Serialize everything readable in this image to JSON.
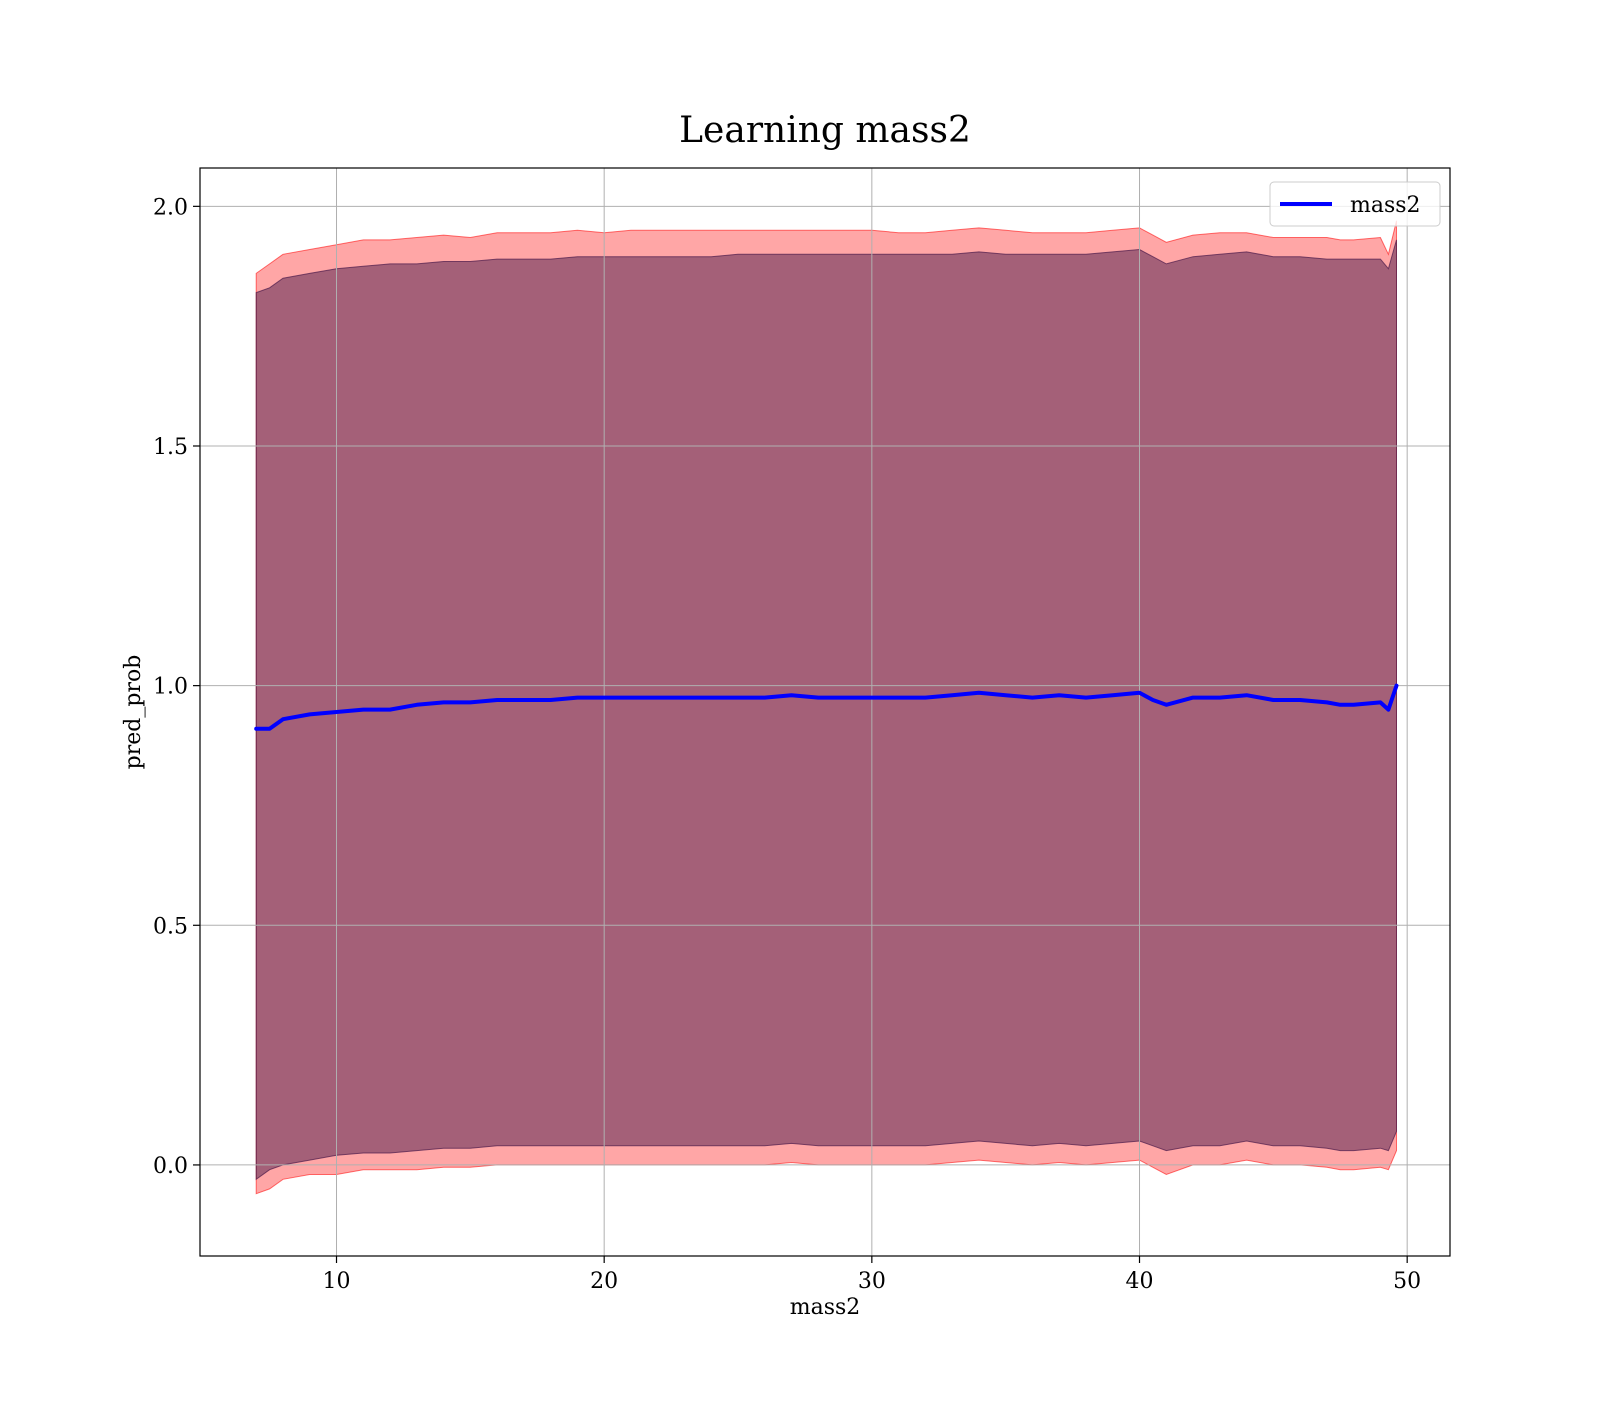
{
  "chart_data": {
    "type": "area",
    "title": "Learning mass2",
    "xlabel": "mass2",
    "ylabel": "pred_prob",
    "xlim": [
      4.9,
      51.6
    ],
    "ylim": [
      -0.19,
      2.08
    ],
    "x_ticks": [
      10,
      20,
      30,
      40,
      50
    ],
    "y_ticks": [
      0.0,
      0.5,
      1.0,
      1.5,
      2.0
    ],
    "x_tick_labels": [
      "10",
      "20",
      "30",
      "40",
      "50"
    ],
    "y_tick_labels": [
      "0.0",
      "0.5",
      "1.0",
      "1.5",
      "2.0"
    ],
    "grid": true,
    "legend": {
      "position": "top-right",
      "entries": [
        {
          "label": "mass2",
          "color": "#0000ff"
        }
      ]
    },
    "series": [
      {
        "name": "mass2",
        "color": "#0000ff",
        "x": [
          7.0,
          7.5,
          8.0,
          9.0,
          10.0,
          11.0,
          12.0,
          13.0,
          14.0,
          15.0,
          16.0,
          17.0,
          18.0,
          19.0,
          20.0,
          21.0,
          22.0,
          23.0,
          24.0,
          25.0,
          26.0,
          27.0,
          28.0,
          29.0,
          30.0,
          31.0,
          32.0,
          33.0,
          34.0,
          35.0,
          36.0,
          37.0,
          38.0,
          39.0,
          40.0,
          40.5,
          41.0,
          42.0,
          43.0,
          44.0,
          45.0,
          46.0,
          47.0,
          47.5,
          48.0,
          49.0,
          49.3,
          49.6
        ],
        "y": [
          0.91,
          0.91,
          0.93,
          0.94,
          0.945,
          0.95,
          0.95,
          0.96,
          0.965,
          0.965,
          0.97,
          0.97,
          0.97,
          0.975,
          0.975,
          0.975,
          0.975,
          0.975,
          0.975,
          0.975,
          0.975,
          0.98,
          0.975,
          0.975,
          0.975,
          0.975,
          0.975,
          0.98,
          0.985,
          0.98,
          0.975,
          0.98,
          0.975,
          0.98,
          0.985,
          0.97,
          0.96,
          0.975,
          0.975,
          0.98,
          0.97,
          0.97,
          0.965,
          0.96,
          0.96,
          0.965,
          0.95,
          1.0
        ]
      }
    ],
    "bands": [
      {
        "color": "#ff0000",
        "opacity": 0.35,
        "x": [
          7.0,
          7.5,
          8.0,
          9.0,
          10.0,
          11.0,
          12.0,
          13.0,
          14.0,
          15.0,
          16.0,
          17.0,
          18.0,
          19.0,
          20.0,
          21.0,
          22.0,
          23.0,
          24.0,
          25.0,
          26.0,
          27.0,
          28.0,
          29.0,
          30.0,
          31.0,
          32.0,
          33.0,
          34.0,
          35.0,
          36.0,
          37.0,
          38.0,
          39.0,
          40.0,
          40.5,
          41.0,
          42.0,
          43.0,
          44.0,
          45.0,
          46.0,
          47.0,
          47.5,
          48.0,
          49.0,
          49.3,
          49.6
        ],
        "upper": [
          1.86,
          1.88,
          1.9,
          1.91,
          1.92,
          1.93,
          1.93,
          1.935,
          1.94,
          1.935,
          1.945,
          1.945,
          1.945,
          1.95,
          1.945,
          1.95,
          1.95,
          1.95,
          1.95,
          1.95,
          1.95,
          1.95,
          1.95,
          1.95,
          1.95,
          1.945,
          1.945,
          1.95,
          1.955,
          1.95,
          1.945,
          1.945,
          1.945,
          1.95,
          1.955,
          1.94,
          1.925,
          1.94,
          1.945,
          1.945,
          1.935,
          1.935,
          1.935,
          1.93,
          1.93,
          1.935,
          1.9,
          1.97
        ],
        "lower": [
          -0.06,
          -0.05,
          -0.03,
          -0.02,
          -0.02,
          -0.01,
          -0.01,
          -0.01,
          -0.005,
          -0.005,
          0.0,
          0.0,
          0.0,
          0.0,
          0.0,
          0.0,
          0.0,
          0.0,
          0.0,
          0.0,
          0.0,
          0.005,
          0.0,
          0.0,
          0.0,
          0.0,
          0.0,
          0.005,
          0.01,
          0.005,
          0.0,
          0.005,
          0.0,
          0.005,
          0.01,
          -0.005,
          -0.02,
          0.0,
          0.0,
          0.01,
          0.0,
          0.0,
          -0.005,
          -0.01,
          -0.01,
          -0.005,
          -0.01,
          0.03
        ]
      },
      {
        "color": "#4a1a4a",
        "opacity": 0.5,
        "x": [
          7.0,
          7.5,
          8.0,
          9.0,
          10.0,
          11.0,
          12.0,
          13.0,
          14.0,
          15.0,
          16.0,
          17.0,
          18.0,
          19.0,
          20.0,
          21.0,
          22.0,
          23.0,
          24.0,
          25.0,
          26.0,
          27.0,
          28.0,
          29.0,
          30.0,
          31.0,
          32.0,
          33.0,
          34.0,
          35.0,
          36.0,
          37.0,
          38.0,
          39.0,
          40.0,
          40.5,
          41.0,
          42.0,
          43.0,
          44.0,
          45.0,
          46.0,
          47.0,
          47.5,
          48.0,
          49.0,
          49.3,
          49.6
        ],
        "upper": [
          1.82,
          1.83,
          1.85,
          1.86,
          1.87,
          1.875,
          1.88,
          1.88,
          1.885,
          1.885,
          1.89,
          1.89,
          1.89,
          1.895,
          1.895,
          1.895,
          1.895,
          1.895,
          1.895,
          1.9,
          1.9,
          1.9,
          1.9,
          1.9,
          1.9,
          1.9,
          1.9,
          1.9,
          1.905,
          1.9,
          1.9,
          1.9,
          1.9,
          1.905,
          1.91,
          1.895,
          1.88,
          1.895,
          1.9,
          1.905,
          1.895,
          1.895,
          1.89,
          1.89,
          1.89,
          1.89,
          1.87,
          1.93
        ],
        "lower": [
          -0.03,
          -0.01,
          0.0,
          0.01,
          0.02,
          0.025,
          0.025,
          0.03,
          0.035,
          0.035,
          0.04,
          0.04,
          0.04,
          0.04,
          0.04,
          0.04,
          0.04,
          0.04,
          0.04,
          0.04,
          0.04,
          0.045,
          0.04,
          0.04,
          0.04,
          0.04,
          0.04,
          0.045,
          0.05,
          0.045,
          0.04,
          0.045,
          0.04,
          0.045,
          0.05,
          0.04,
          0.03,
          0.04,
          0.04,
          0.05,
          0.04,
          0.04,
          0.035,
          0.03,
          0.03,
          0.035,
          0.03,
          0.07
        ]
      }
    ]
  }
}
